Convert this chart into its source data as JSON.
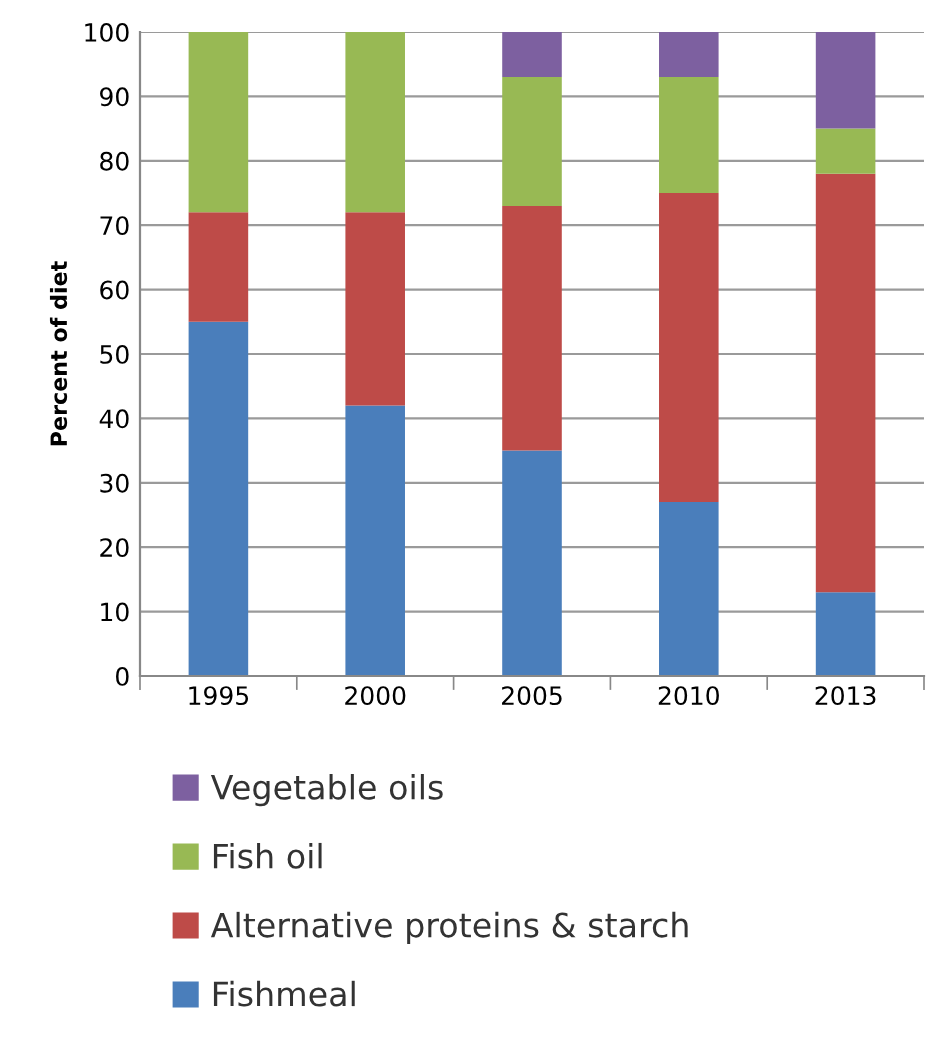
{
  "chart_data": {
    "type": "bar",
    "stacked": true,
    "ylabel": "Percent of diet",
    "categories": [
      "1995",
      "2000",
      "2005",
      "2010",
      "2013"
    ],
    "series": [
      {
        "name": "Fishmeal",
        "color": "#4a7ebb",
        "values": [
          55,
          42,
          35,
          27,
          13
        ]
      },
      {
        "name": "Alternative proteins & starch",
        "color": "#be4b48",
        "values": [
          17,
          30,
          38,
          48,
          65
        ]
      },
      {
        "name": "Fish oil",
        "color": "#98b954",
        "values": [
          28,
          28,
          20,
          18,
          7
        ]
      },
      {
        "name": "Vegetable oils",
        "color": "#7d60a0",
        "values": [
          0,
          0,
          7,
          7,
          15
        ]
      }
    ],
    "ylim": [
      0,
      100
    ],
    "yticks": [
      0,
      10,
      20,
      30,
      40,
      50,
      60,
      70,
      80,
      90,
      100
    ],
    "grid": "y",
    "legend": "bottom"
  }
}
